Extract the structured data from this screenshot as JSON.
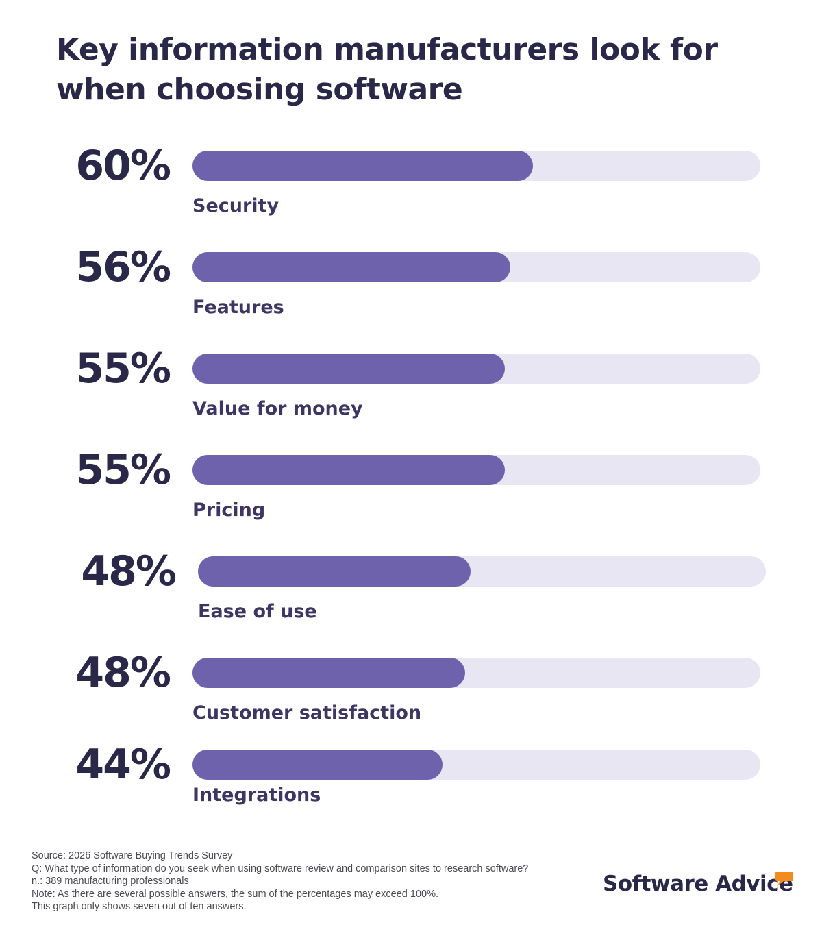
{
  "chart_data": {
    "type": "bar",
    "orientation": "horizontal",
    "title": "Key information manufacturers look for when choosing software",
    "unit": "%",
    "ylim": [
      0,
      100
    ],
    "categories": [
      "Security",
      "Features",
      "Value for money",
      "Pricing",
      "Ease of use",
      "Customer satisfaction",
      "Integrations"
    ],
    "values": [
      60,
      56,
      55,
      55,
      48,
      48,
      44
    ],
    "value_labels": [
      "60%",
      "56%",
      "55%",
      "55%",
      "48%",
      "48%",
      "44%"
    ]
  },
  "colors": {
    "bar_fill": "#6e62ad",
    "bar_track": "#e8e6f2",
    "text_dark": "#2b2749",
    "label": "#3d3564",
    "brand_accent": "#f28c1e"
  },
  "footer": {
    "source": "Source: 2026 Software Buying Trends Survey",
    "question": "Q: What type of information do you seek when using software review and comparison sites to research software?",
    "sample": "n.: 389 manufacturing professionals",
    "note": "Note: As there are several possible answers, the sum of the percentages may exceed 100%.",
    "scope": "This graph only shows seven out of ten answers."
  },
  "brand": {
    "name": "Software Advice",
    "icon": "speech-bubble-icon"
  }
}
